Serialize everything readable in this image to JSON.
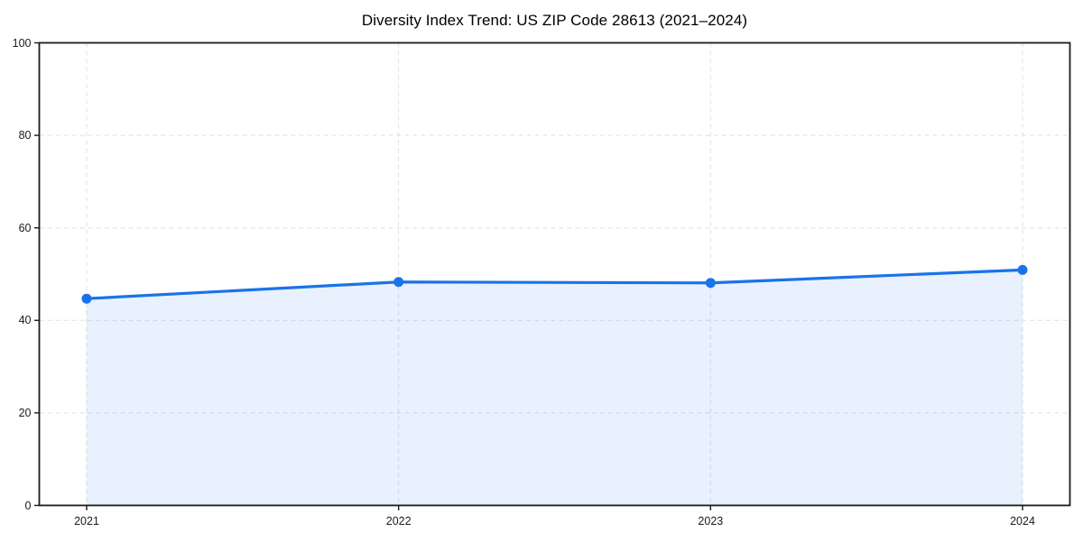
{
  "chart_data": {
    "type": "area",
    "title": "Diversity Index Trend: US ZIP Code 28613 (2021–2024)",
    "series_name": "Diversity Index",
    "categories": [
      "2021",
      "2022",
      "2023",
      "2024"
    ],
    "values": [
      44.7,
      48.3,
      48.1,
      50.9
    ],
    "xlabel": "",
    "ylabel": "",
    "ylim": [
      0,
      100
    ],
    "yticks": [
      0,
      20,
      40,
      60,
      80,
      100
    ],
    "grid": true,
    "grid_style": "dashed",
    "legend": false,
    "marker": "circle",
    "colors": {
      "line": "#1a73e8",
      "marker": "#1a73e8",
      "fill": "rgba(26,115,232,0.10)",
      "grid": "#dedede",
      "spine": "#1a1a1a",
      "tick_text": "#1a1a1a",
      "title_text": "#000000",
      "background": "#ffffff"
    }
  }
}
